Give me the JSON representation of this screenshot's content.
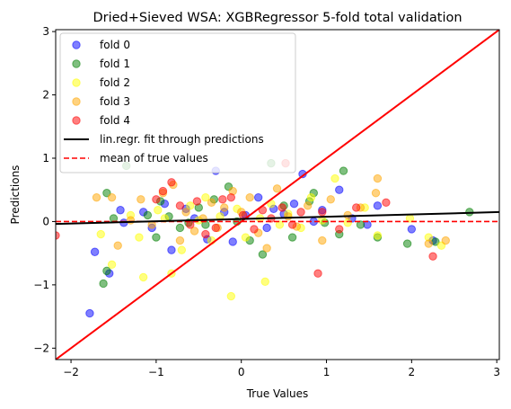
{
  "chart_data": {
    "type": "scatter",
    "title": "Dried+Sieved WSA: XGBRegressor 5-fold total validation",
    "xlabel": "True Values",
    "ylabel": "Predictions",
    "xlim": [
      -2.18,
      3.03
    ],
    "ylim": [
      -2.18,
      3.03
    ],
    "xticks": [
      -2,
      -1,
      0,
      1,
      2,
      3
    ],
    "yticks": [
      -2,
      -1,
      0,
      1,
      2,
      3
    ],
    "grid": false,
    "legend_position": "top-left",
    "series": [
      {
        "name": "fold 0",
        "color": "#0000ff",
        "points": [
          [
            -1.78,
            -1.45
          ],
          [
            -1.72,
            -0.48
          ],
          [
            -1.55,
            -0.82
          ],
          [
            -1.42,
            0.18
          ],
          [
            -1.38,
            -0.02
          ],
          [
            -1.15,
            0.15
          ],
          [
            -1.05,
            -0.1
          ],
          [
            -0.9,
            0.28
          ],
          [
            -0.82,
            -0.45
          ],
          [
            -0.65,
            0.2
          ],
          [
            -0.55,
            0.05
          ],
          [
            -0.4,
            -0.28
          ],
          [
            -0.3,
            0.8
          ],
          [
            -0.2,
            0.15
          ],
          [
            -0.1,
            -0.32
          ],
          [
            0.05,
            0.1
          ],
          [
            0.2,
            0.38
          ],
          [
            0.3,
            -0.1
          ],
          [
            0.38,
            0.2
          ],
          [
            0.5,
            0.12
          ],
          [
            0.62,
            0.28
          ],
          [
            0.72,
            0.75
          ],
          [
            0.85,
            0.0
          ],
          [
            0.95,
            0.18
          ],
          [
            1.15,
            0.5
          ],
          [
            1.3,
            0.05
          ],
          [
            1.48,
            -0.05
          ],
          [
            1.6,
            0.25
          ],
          [
            2.0,
            -0.12
          ],
          [
            2.25,
            -0.3
          ]
        ]
      },
      {
        "name": "fold 1",
        "color": "#008000",
        "points": [
          [
            -1.62,
            -0.98
          ],
          [
            -1.58,
            -0.78
          ],
          [
            -1.58,
            0.45
          ],
          [
            -1.5,
            0.05
          ],
          [
            -1.35,
            0.88
          ],
          [
            -1.1,
            0.1
          ],
          [
            -1.0,
            -0.25
          ],
          [
            -0.95,
            0.32
          ],
          [
            -0.85,
            0.08
          ],
          [
            -0.72,
            -0.1
          ],
          [
            -0.62,
            -0.02
          ],
          [
            -0.5,
            0.22
          ],
          [
            -0.42,
            -0.05
          ],
          [
            -0.32,
            0.35
          ],
          [
            -0.15,
            0.55
          ],
          [
            -0.05,
            0.0
          ],
          [
            0.1,
            -0.3
          ],
          [
            0.25,
            -0.52
          ],
          [
            0.35,
            0.92
          ],
          [
            0.5,
            0.25
          ],
          [
            0.6,
            -0.25
          ],
          [
            0.8,
            0.32
          ],
          [
            0.85,
            0.45
          ],
          [
            0.98,
            -0.02
          ],
          [
            1.15,
            -0.2
          ],
          [
            1.2,
            0.8
          ],
          [
            1.4,
            -0.05
          ],
          [
            1.6,
            -0.25
          ],
          [
            1.95,
            -0.35
          ],
          [
            2.28,
            -0.32
          ],
          [
            2.68,
            0.15
          ]
        ]
      },
      {
        "name": "fold 2",
        "color": "#ffff00",
        "points": [
          [
            -1.65,
            -0.2
          ],
          [
            -1.52,
            -0.68
          ],
          [
            -1.3,
            0.1
          ],
          [
            -1.2,
            -0.25
          ],
          [
            -1.15,
            -0.88
          ],
          [
            -0.98,
            0.18
          ],
          [
            -0.9,
            0.05
          ],
          [
            -0.82,
            -0.82
          ],
          [
            -0.7,
            -0.45
          ],
          [
            -0.6,
            0.25
          ],
          [
            -0.5,
            0.02
          ],
          [
            -0.42,
            0.38
          ],
          [
            -0.35,
            -0.3
          ],
          [
            -0.25,
            0.08
          ],
          [
            -0.12,
            -1.18
          ],
          [
            -0.05,
            0.2
          ],
          [
            0.05,
            -0.25
          ],
          [
            0.22,
            0.05
          ],
          [
            0.28,
            -0.95
          ],
          [
            0.35,
            0.28
          ],
          [
            0.45,
            -0.05
          ],
          [
            0.55,
            0.12
          ],
          [
            0.7,
            -0.1
          ],
          [
            0.82,
            0.38
          ],
          [
            0.95,
            0.02
          ],
          [
            1.1,
            0.68
          ],
          [
            1.25,
            -0.02
          ],
          [
            1.45,
            0.22
          ],
          [
            1.6,
            -0.22
          ],
          [
            1.98,
            0.05
          ],
          [
            2.2,
            -0.25
          ],
          [
            2.35,
            -0.38
          ]
        ]
      },
      {
        "name": "fold 3",
        "color": "#ffa500",
        "points": [
          [
            -1.7,
            0.38
          ],
          [
            -1.52,
            0.38
          ],
          [
            -1.45,
            -0.38
          ],
          [
            -1.3,
            0.02
          ],
          [
            -1.18,
            0.35
          ],
          [
            -1.05,
            -0.05
          ],
          [
            -0.92,
            0.45
          ],
          [
            -0.8,
            0.58
          ],
          [
            -0.72,
            -0.3
          ],
          [
            -0.65,
            0.15
          ],
          [
            -0.55,
            -0.15
          ],
          [
            -0.45,
            0.05
          ],
          [
            -0.35,
            0.3
          ],
          [
            -0.28,
            -0.1
          ],
          [
            -0.2,
            0.22
          ],
          [
            -0.1,
            0.48
          ],
          [
            0.0,
            0.15
          ],
          [
            0.1,
            0.38
          ],
          [
            0.2,
            -0.18
          ],
          [
            0.3,
            -0.42
          ],
          [
            0.42,
            0.52
          ],
          [
            0.55,
            0.08
          ],
          [
            0.65,
            -0.08
          ],
          [
            0.78,
            0.25
          ],
          [
            0.95,
            -0.3
          ],
          [
            1.05,
            0.35
          ],
          [
            1.25,
            0.1
          ],
          [
            1.4,
            0.22
          ],
          [
            1.6,
            0.68
          ],
          [
            1.58,
            0.45
          ],
          [
            2.2,
            -0.35
          ],
          [
            2.4,
            -0.3
          ]
        ]
      },
      {
        "name": "fold 4",
        "color": "#ff0000",
        "points": [
          [
            -2.18,
            -0.22
          ],
          [
            -1.0,
            0.35
          ],
          [
            -0.92,
            0.48
          ],
          [
            -0.82,
            0.62
          ],
          [
            -0.72,
            0.25
          ],
          [
            -0.6,
            -0.05
          ],
          [
            -0.52,
            0.32
          ],
          [
            -0.42,
            -0.2
          ],
          [
            -0.3,
            -0.1
          ],
          [
            -0.22,
            0.35
          ],
          [
            -0.12,
            0.38
          ],
          [
            0.02,
            0.1
          ],
          [
            0.15,
            -0.12
          ],
          [
            0.25,
            0.18
          ],
          [
            0.35,
            0.05
          ],
          [
            0.48,
            0.22
          ],
          [
            0.52,
            0.92
          ],
          [
            0.6,
            -0.05
          ],
          [
            0.7,
            0.15
          ],
          [
            0.9,
            -0.82
          ],
          [
            0.95,
            0.15
          ],
          [
            1.15,
            -0.12
          ],
          [
            1.35,
            0.22
          ],
          [
            1.7,
            0.3
          ],
          [
            2.25,
            -0.55
          ]
        ]
      }
    ],
    "identity_line": {
      "color": "#ff0000"
    },
    "fit_line": {
      "name": "lin.regr. fit through predictions",
      "color": "#000000",
      "intercept": 0.04,
      "slope": 0.036
    },
    "mean_line": {
      "name": "mean of true values",
      "color": "#ff0000",
      "y": 0.0
    }
  }
}
